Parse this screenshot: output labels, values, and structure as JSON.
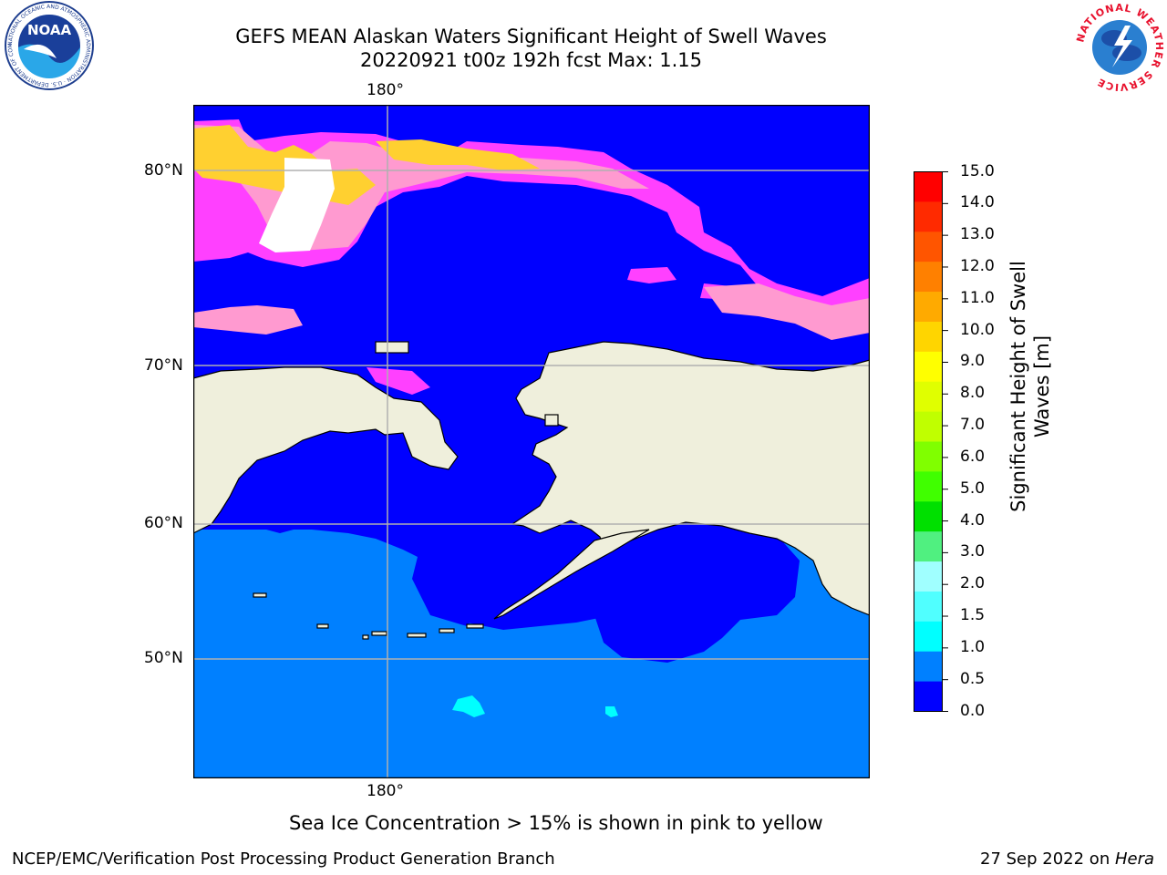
{
  "title": {
    "line1": "GEFS MEAN Alaskan Waters Significant Height of Swell Waves",
    "line2": "20220921 t00z 192h fcst   Max: 1.15"
  },
  "map": {
    "lon_label_top": "180°",
    "lon_label_bottom": "180°",
    "lat_labels": [
      "80°N",
      "70°N",
      "60°N",
      "50°N"
    ],
    "colors": {
      "land": "#efefdc",
      "swell_0_05": "#0000ff",
      "swell_05_10": "#0080ff",
      "swell_15_20": "#00ffff",
      "ice_low": "#ff40ff",
      "ice_mid": "#ff9ad0",
      "ice_high": "#ffd030",
      "grid": "#b0b0b0"
    }
  },
  "colorbar": {
    "title_line1": "Significant Height of Swell",
    "title_line2": "Waves [m]",
    "ticks": [
      "15.0",
      "14.0",
      "13.0",
      "12.0",
      "11.0",
      "10.0",
      "9.0",
      "8.0",
      "7.0",
      "6.0",
      "5.0",
      "4.0",
      "3.0",
      "2.0",
      "1.5",
      "1.0",
      "0.5",
      "0.0"
    ],
    "colors": [
      "#ff0000",
      "#ff2a00",
      "#ff5500",
      "#ff8000",
      "#ffaa00",
      "#ffd500",
      "#ffff00",
      "#e0ff00",
      "#c0ff00",
      "#80ff00",
      "#40ff00",
      "#00e000",
      "#50f080",
      "#a0ffff",
      "#50ffff",
      "#00ffff",
      "#0080ff",
      "#0000ff"
    ]
  },
  "note": "Sea Ice Concentration > 15% is shown in pink to yellow",
  "footer": {
    "left": "NCEP/EMC/Verification Post Processing Product Generation Branch",
    "right_prefix": "27 Sep 2022 on ",
    "right_host": "Hera"
  },
  "logos": {
    "noaa_text": "NOAA",
    "noaa_ring_text": "NATIONAL OCEANIC AND ATMOSPHERIC ADMINISTRATION · U.S. DEPARTMENT OF COMMERCE",
    "nws_ring_text": "NATIONAL WEATHER SERVICE"
  }
}
